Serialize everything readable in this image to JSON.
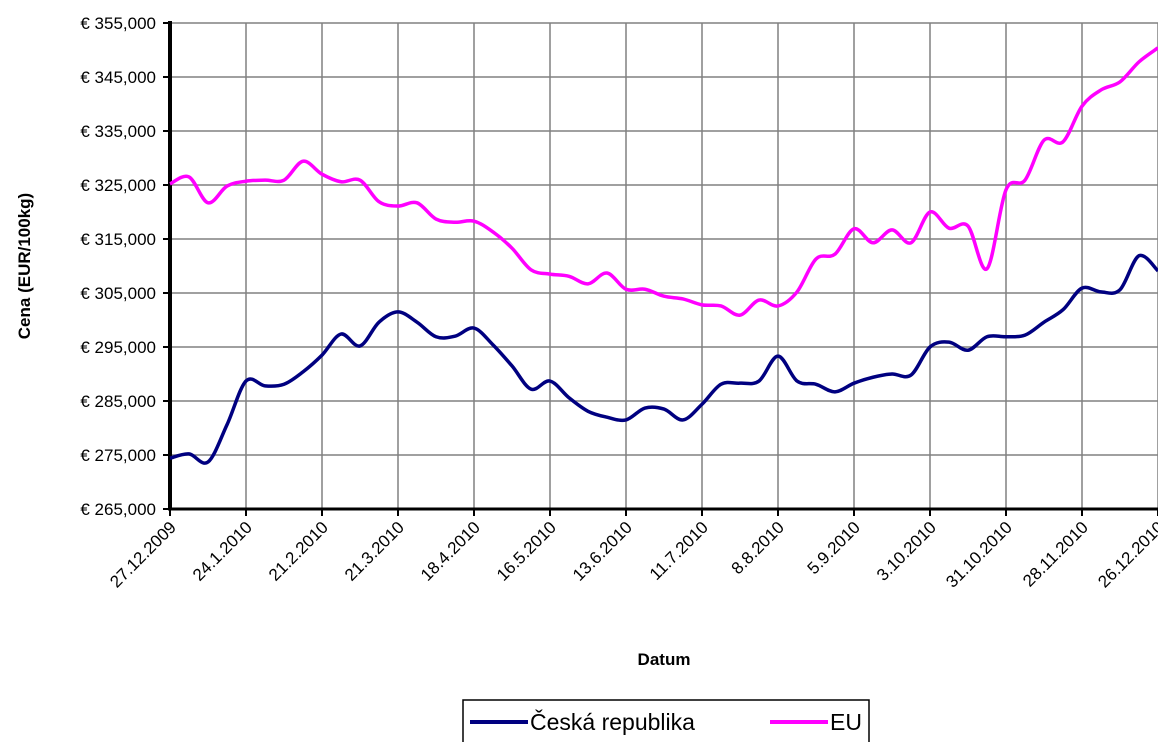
{
  "chart_data": {
    "type": "line",
    "categories": [
      "27.12.2009",
      null,
      null,
      null,
      "24.1.2010",
      null,
      null,
      null,
      "21.2.2010",
      null,
      null,
      null,
      "21.3.2010",
      null,
      null,
      null,
      "18.4.2010",
      null,
      null,
      null,
      "16.5.2010",
      null,
      null,
      null,
      "13.6.2010",
      null,
      null,
      null,
      "11.7.2010",
      null,
      null,
      null,
      "8.8.2010",
      null,
      null,
      null,
      "5.9.2010",
      null,
      null,
      null,
      "3.10.2010",
      null,
      null,
      null,
      "31.10.2010",
      null,
      null,
      null,
      "28.11.2010",
      null,
      null,
      null,
      "26.12.2010"
    ],
    "series": [
      {
        "name": "Česká republika",
        "color": "#000080",
        "values": [
          274.4,
          275.2,
          273.7,
          280.6,
          288.7,
          287.8,
          288.1,
          290.4,
          293.5,
          297.4,
          295.2,
          299.6,
          301.5,
          299.6,
          296.9,
          297.0,
          298.5,
          295.4,
          291.5,
          287.2,
          288.7,
          285.6,
          283.1,
          282.0,
          281.5,
          283.7,
          283.5,
          281.5,
          284.4,
          288.1,
          288.3,
          288.7,
          293.3,
          288.7,
          288.1,
          286.7,
          288.3,
          289.4,
          290.0,
          289.8,
          295.0,
          295.9,
          294.4,
          296.9,
          296.9,
          297.2,
          299.6,
          301.9,
          305.9,
          305.2,
          305.6,
          311.9,
          309.1
        ]
      },
      {
        "name": "EU",
        "color": "#ff00ff",
        "values": [
          325.2,
          326.5,
          321.7,
          324.8,
          325.7,
          325.9,
          325.9,
          329.4,
          327.0,
          325.6,
          325.9,
          321.9,
          321.1,
          321.7,
          318.7,
          318.1,
          318.3,
          316.3,
          313.3,
          309.3,
          308.5,
          308.1,
          306.7,
          308.7,
          305.7,
          305.7,
          304.4,
          303.9,
          302.8,
          302.6,
          300.9,
          303.7,
          302.6,
          305.2,
          311.3,
          312.2,
          316.9,
          314.3,
          316.7,
          314.3,
          320.0,
          317.0,
          317.4,
          309.5,
          324.1,
          325.9,
          333.3,
          333.0,
          339.6,
          342.6,
          344.1,
          347.8,
          350.4
        ]
      }
    ],
    "ylim": [
      265,
      355
    ],
    "yticks": [
      {
        "value": 265,
        "label": "€ 265,000"
      },
      {
        "value": 275,
        "label": "€ 275,000"
      },
      {
        "value": 285,
        "label": "€ 285,000"
      },
      {
        "value": 295,
        "label": "€ 295,000"
      },
      {
        "value": 305,
        "label": "€ 305,000"
      },
      {
        "value": 315,
        "label": "€ 315,000"
      },
      {
        "value": 325,
        "label": "€ 325,000"
      },
      {
        "value": 335,
        "label": "€ 335,000"
      },
      {
        "value": 345,
        "label": "€ 345,000"
      },
      {
        "value": 355,
        "label": "€ 355,000"
      }
    ],
    "x_label": "Datum",
    "y_label": "Cena (EUR/100kg)",
    "grid": true
  }
}
